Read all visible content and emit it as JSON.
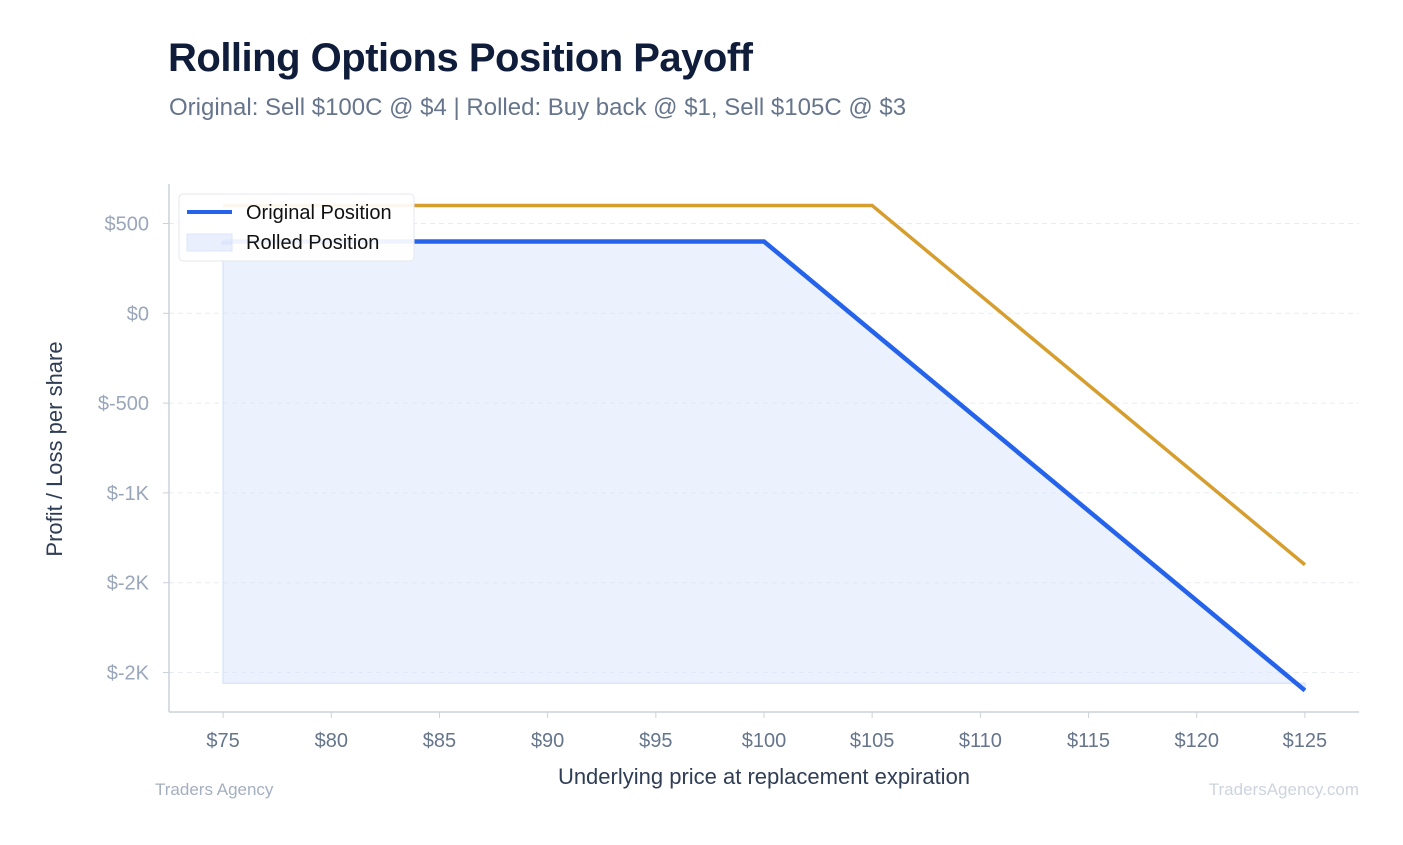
{
  "header": {
    "title": "Rolling Options Position Payoff",
    "subtitle": "Original: Sell $100C @ $4 | Rolled: Buy back @ $1, Sell $105C @ $3"
  },
  "footer": {
    "left": "Traders Agency",
    "right": "TradersAgency.com"
  },
  "colors": {
    "original": "#2563eb",
    "rolled": "#d69e2e",
    "fill": "#dbe5fb",
    "axis": "#cbd2dc",
    "grid": "#e8ecf2"
  },
  "chart_data": {
    "type": "line",
    "xlabel": "Underlying price at replacement expiration",
    "ylabel": "Profit / Loss per share",
    "xlim": [
      72.5,
      127.5
    ],
    "ylim": [
      -2220,
      720
    ],
    "x_ticks": [
      {
        "value": 75,
        "label": "$75"
      },
      {
        "value": 80,
        "label": "$80"
      },
      {
        "value": 85,
        "label": "$85"
      },
      {
        "value": 90,
        "label": "$90"
      },
      {
        "value": 95,
        "label": "$95"
      },
      {
        "value": 100,
        "label": "$100"
      },
      {
        "value": 105,
        "label": "$105"
      },
      {
        "value": 110,
        "label": "$110"
      },
      {
        "value": 115,
        "label": "$115"
      },
      {
        "value": 120,
        "label": "$120"
      },
      {
        "value": 125,
        "label": "$125"
      }
    ],
    "y_ticks": [
      {
        "value": 500,
        "label": "$500"
      },
      {
        "value": 0,
        "label": "$0"
      },
      {
        "value": -500,
        "label": "$-500"
      },
      {
        "value": -1000,
        "label": "$-1K"
      },
      {
        "value": -1500,
        "label": "$-2K"
      },
      {
        "value": -2000,
        "label": "$-2K"
      }
    ],
    "grid": true,
    "legend_position": "top-left",
    "fill_baseline": -2060,
    "series": [
      {
        "name": "Original Position",
        "x": [
          75,
          100,
          125
        ],
        "y": [
          400,
          400,
          -2100
        ],
        "filled": true
      },
      {
        "name": "Rolled Position",
        "x": [
          75,
          105,
          125
        ],
        "y": [
          600,
          600,
          -1400
        ],
        "filled": false
      }
    ]
  }
}
